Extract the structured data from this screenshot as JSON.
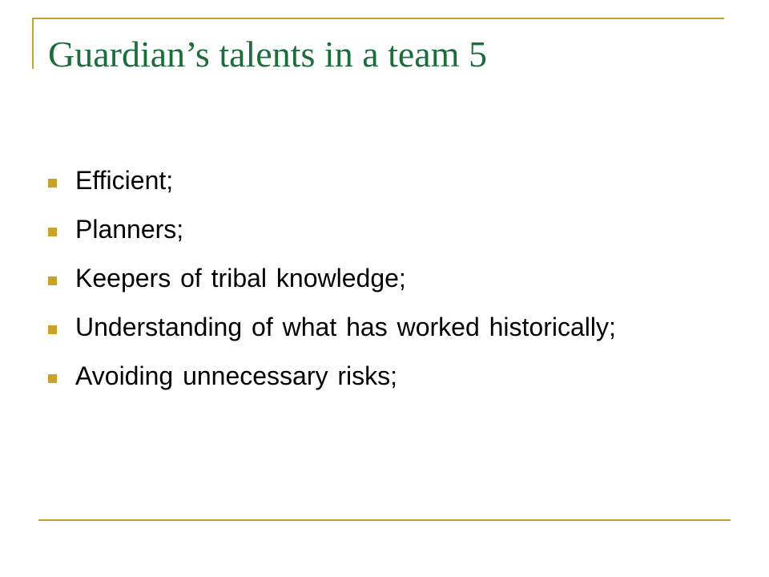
{
  "slide": {
    "title": "Guardian’s talents in a team 5",
    "bullets": [
      "Efficient;",
      "Planners;",
      "Keepers of tribal knowledge;",
      "Understanding of what has worked historically;",
      "Avoiding unnecessary risks;"
    ]
  },
  "colors": {
    "title": "#1a6e3c",
    "accent": "#c9a227",
    "text": "#000000"
  },
  "icons": {
    "bullet": "square-bullet-icon"
  }
}
